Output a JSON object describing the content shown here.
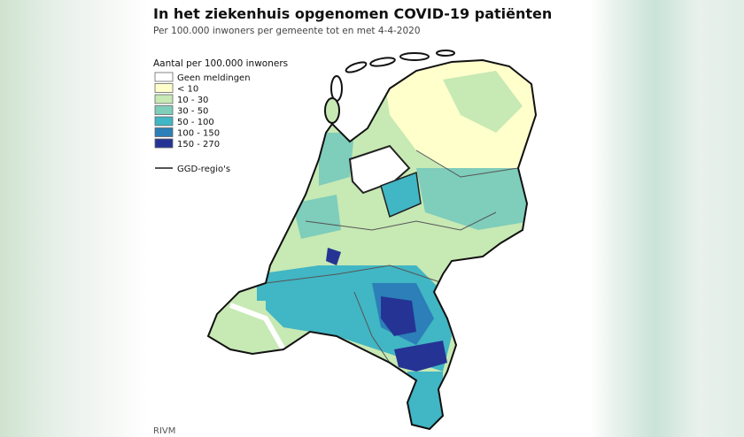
{
  "header": {
    "title": "In het ziekenhuis opgenomen COVID-19 patiënten",
    "subtitle": "Per 100.000 inwoners per gemeente tot en met 4-4-2020"
  },
  "legend": {
    "title": "Aantal per 100.000 inwoners",
    "items": [
      {
        "label": "Geen meldingen",
        "color": "#ffffff"
      },
      {
        "label": "< 10",
        "color": "#ffffcc"
      },
      {
        "label": "10 - 30",
        "color": "#c7e9b4"
      },
      {
        "label": "30 - 50",
        "color": "#7fcdbb"
      },
      {
        "label": "50 - 100",
        "color": "#41b6c4"
      },
      {
        "label": "100 - 150",
        "color": "#2c7fb8"
      },
      {
        "label": "150 - 270",
        "color": "#253494"
      }
    ],
    "line_label": "GGD-regio's"
  },
  "source": "RIVM"
}
